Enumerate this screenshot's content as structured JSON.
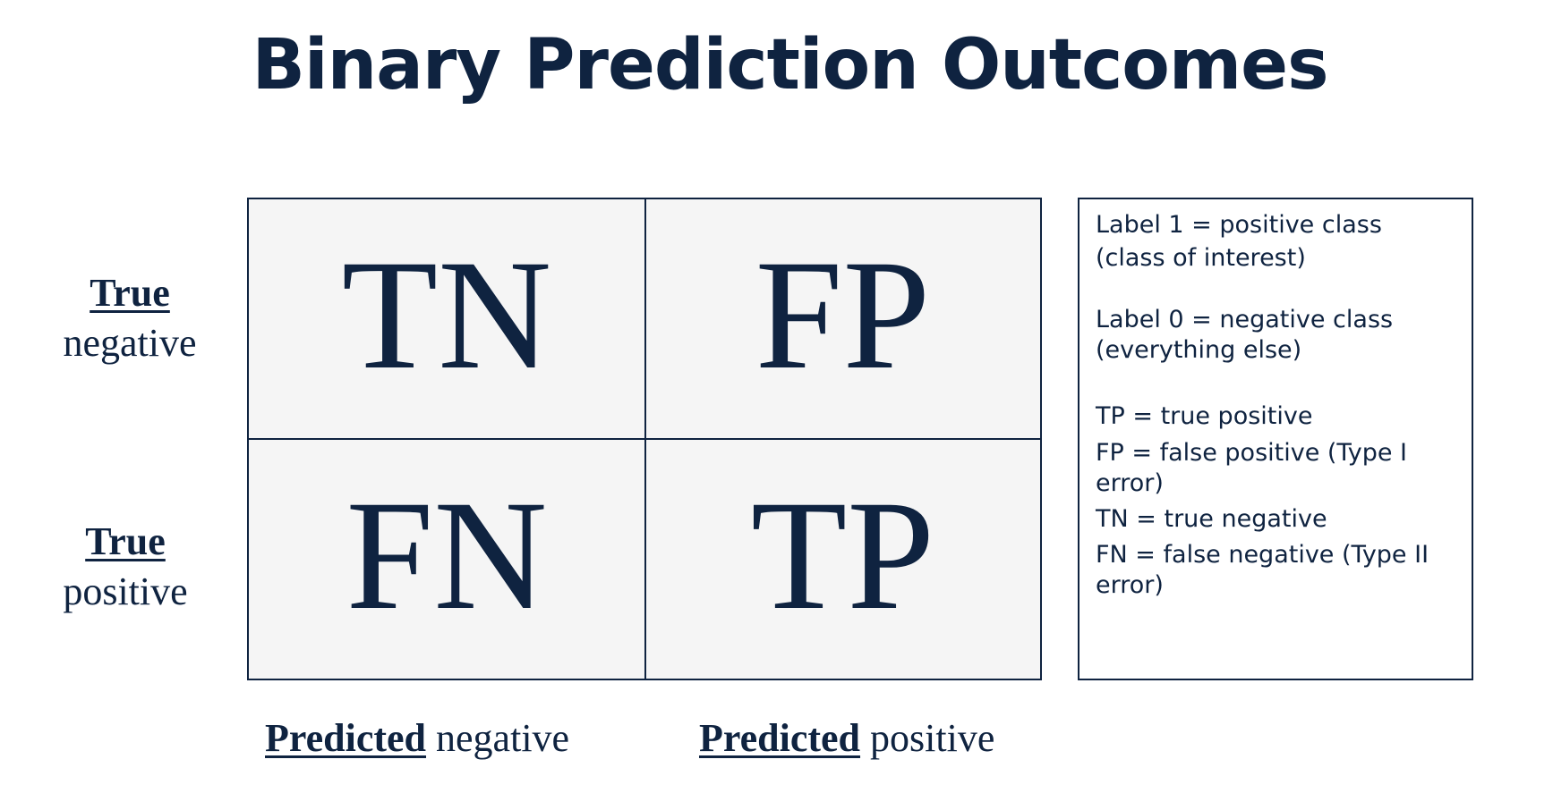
{
  "title": "Binary Prediction Outcomes",
  "rows": [
    {
      "keyword": "True",
      "rest": "negative"
    },
    {
      "keyword": "True",
      "rest": "positive"
    }
  ],
  "columns": [
    {
      "keyword": "Predicted",
      "rest": " negative"
    },
    {
      "keyword": "Predicted",
      "rest": " positive"
    }
  ],
  "cells": {
    "tn": "TN",
    "fp": "FP",
    "fn": "FN",
    "tp": "TP"
  },
  "legend": {
    "label1_line1": "Label 1 = positive class",
    "label1_line2": "(class of interest)",
    "label0_line1": "Label 0 = negative class",
    "label0_line2": "(everything else)",
    "tp": "TP = true positive",
    "fp_line1": "FP = false positive (Type I",
    "fp_line2": "error)",
    "tn": "TN = true negative",
    "fn_line1": "FN = false negative  (Type II",
    "fn_line2": "error)"
  }
}
